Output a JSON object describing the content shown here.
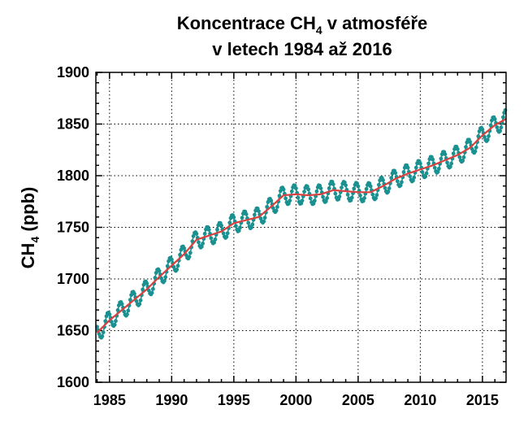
{
  "chart_data": {
    "type": "line",
    "title_line1_main": "Koncentrace CH",
    "title_line1_sub": "4",
    "title_line1_rest": " v atmosféře",
    "title_line2": "v letech 1984 až 2016",
    "ylabel_main": "CH",
    "ylabel_sub": "4",
    "ylabel_rest": " (ppb)",
    "xlabel": "",
    "xlim": [
      1983.9,
      2016.9
    ],
    "ylim": [
      1600,
      1900
    ],
    "xticks": [
      1985,
      1990,
      1995,
      2000,
      2005,
      2010,
      2015
    ],
    "xtick_labels": [
      "1985",
      "1990",
      "1995",
      "2000",
      "2005",
      "2010",
      "2015"
    ],
    "yticks": [
      1600,
      1650,
      1700,
      1750,
      1800,
      1850,
      1900
    ],
    "ytick_labels": [
      "1600",
      "1650",
      "1700",
      "1750",
      "1800",
      "1850",
      "1900"
    ],
    "grid": true,
    "series": [
      {
        "style": "points",
        "color": "#1a9090",
        "sampling": "monthly",
        "x": [
          1984.0,
          2016.9
        ],
        "seasonal_amplitude_ppb": 9,
        "seasonal_peak_month": "October"
      },
      {
        "style": "line",
        "color": "#d94040",
        "x": [
          1984.0,
          1985.0,
          1986.0,
          1987.0,
          1988.0,
          1989.0,
          1990.0,
          1991.0,
          1992.0,
          1993.0,
          1994.0,
          1995.0,
          1996.0,
          1997.0,
          1998.0,
          1999.0,
          2000.0,
          2001.0,
          2002.0,
          2003.0,
          2004.0,
          2005.0,
          2006.0,
          2007.0,
          2008.0,
          2009.0,
          2010.0,
          2011.0,
          2012.0,
          2013.0,
          2014.0,
          2015.0,
          2016.0,
          2016.9
        ],
        "y": [
          1648,
          1660,
          1670,
          1680,
          1690,
          1702,
          1713,
          1724,
          1738,
          1742,
          1746,
          1754,
          1757,
          1760,
          1770,
          1781,
          1782,
          1781,
          1782,
          1786,
          1785,
          1784,
          1784,
          1790,
          1797,
          1802,
          1806,
          1810,
          1815,
          1820,
          1827,
          1839,
          1849,
          1855
        ]
      }
    ]
  }
}
